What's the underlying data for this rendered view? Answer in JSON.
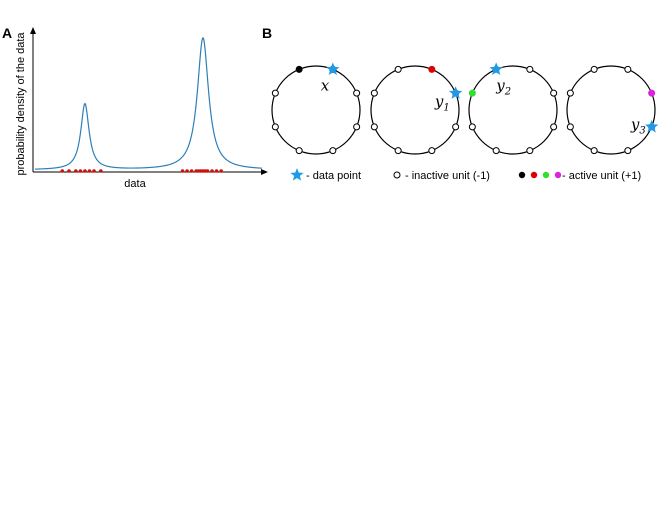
{
  "panel_a": {
    "letter": "A",
    "xlabel": "data",
    "ylabel": "probability density of the data",
    "curve_color": "#2e7fb8",
    "sample_color": "#cc1111",
    "peaks": [
      {
        "center": 0.22,
        "height": 0.5,
        "width": 0.022
      },
      {
        "center": 0.74,
        "height": 1.0,
        "width": 0.03
      }
    ],
    "samples": [
      0.12,
      0.15,
      0.18,
      0.2,
      0.22,
      0.24,
      0.26,
      0.29,
      0.65,
      0.67,
      0.69,
      0.71,
      0.72,
      0.73,
      0.74,
      0.75,
      0.76,
      0.78,
      0.8,
      0.82
    ]
  },
  "panel_b": {
    "letter": "B",
    "unit_count": 8,
    "circles": [
      {
        "label_main": "x",
        "label_sub": "",
        "active_units": [
          0,
          1
        ],
        "active_color": "#000000",
        "star_angle": 22.5
      },
      {
        "label_main": "y",
        "label_sub": "1",
        "active_units": [
          1,
          2
        ],
        "active_color": "#dd0000",
        "star_angle": 67.5
      },
      {
        "label_main": "y",
        "label_sub": "2",
        "active_units": [
          0,
          7
        ],
        "active_color": "#33dd33",
        "star_angle": -22.5
      },
      {
        "label_main": "y",
        "label_sub": "3",
        "active_units": [
          2,
          3
        ],
        "active_color": "#dd22dd",
        "star_angle": 112.5
      }
    ]
  },
  "legend": {
    "star_label": "- data point",
    "inactive_label": "- inactive unit (-1)",
    "active_label": "- active unit (+1)",
    "star_color": "#1e9be8",
    "active_swatches": [
      "#000000",
      "#dd0000",
      "#33dd33",
      "#dd22dd"
    ]
  }
}
